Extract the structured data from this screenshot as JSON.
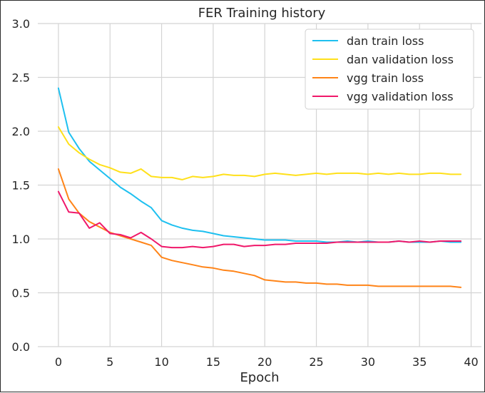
{
  "chart_data": {
    "type": "line",
    "title": "FER Training history",
    "xlabel": "Epoch",
    "ylabel": "",
    "xlim": [
      -2,
      41
    ],
    "ylim": [
      0.0,
      3.0
    ],
    "xticks": [
      0,
      5,
      10,
      15,
      20,
      25,
      30,
      35,
      40
    ],
    "yticks": [
      0.0,
      0.5,
      1.0,
      1.5,
      2.0,
      2.5,
      3.0
    ],
    "xtick_labels": [
      "0",
      "5",
      "10",
      "15",
      "20",
      "25",
      "30",
      "35",
      "40"
    ],
    "ytick_labels": [
      "0.0",
      "0.5",
      "1.0",
      "1.5",
      "2.0",
      "2.5",
      "3.0"
    ],
    "grid": true,
    "legend_position": "top-right",
    "x": [
      0,
      1,
      2,
      3,
      4,
      5,
      6,
      7,
      8,
      9,
      10,
      11,
      12,
      13,
      14,
      15,
      16,
      17,
      18,
      19,
      20,
      21,
      22,
      23,
      24,
      25,
      26,
      27,
      28,
      29,
      30,
      31,
      32,
      33,
      34,
      35,
      36,
      37,
      38,
      39
    ],
    "series": [
      {
        "name": "dan train loss",
        "color": "#1ec0f0",
        "values": [
          2.4,
          1.99,
          1.84,
          1.72,
          1.64,
          1.56,
          1.48,
          1.42,
          1.35,
          1.29,
          1.17,
          1.13,
          1.1,
          1.08,
          1.07,
          1.05,
          1.03,
          1.02,
          1.01,
          1.0,
          0.99,
          0.99,
          0.99,
          0.98,
          0.98,
          0.98,
          0.97,
          0.97,
          0.98,
          0.97,
          0.98,
          0.97,
          0.97,
          0.98,
          0.97,
          0.97,
          0.97,
          0.98,
          0.97,
          0.97
        ]
      },
      {
        "name": "dan validation loss",
        "color": "#ffe01a",
        "values": [
          2.04,
          1.88,
          1.8,
          1.74,
          1.69,
          1.66,
          1.62,
          1.61,
          1.65,
          1.58,
          1.57,
          1.57,
          1.55,
          1.58,
          1.57,
          1.58,
          1.6,
          1.59,
          1.59,
          1.58,
          1.6,
          1.61,
          1.6,
          1.59,
          1.6,
          1.61,
          1.6,
          1.61,
          1.61,
          1.61,
          1.6,
          1.61,
          1.6,
          1.61,
          1.6,
          1.6,
          1.61,
          1.61,
          1.6,
          1.6
        ]
      },
      {
        "name": "vgg train loss",
        "color": "#ff8418",
        "values": [
          1.65,
          1.37,
          1.24,
          1.16,
          1.11,
          1.06,
          1.03,
          1.0,
          0.97,
          0.94,
          0.83,
          0.8,
          0.78,
          0.76,
          0.74,
          0.73,
          0.71,
          0.7,
          0.68,
          0.66,
          0.62,
          0.61,
          0.6,
          0.6,
          0.59,
          0.59,
          0.58,
          0.58,
          0.57,
          0.57,
          0.57,
          0.56,
          0.56,
          0.56,
          0.56,
          0.56,
          0.56,
          0.56,
          0.56,
          0.55
        ]
      },
      {
        "name": "vgg validation loss",
        "color": "#f0186a",
        "values": [
          1.44,
          1.25,
          1.24,
          1.1,
          1.15,
          1.05,
          1.04,
          1.01,
          1.06,
          1.0,
          0.93,
          0.92,
          0.92,
          0.93,
          0.92,
          0.93,
          0.95,
          0.95,
          0.93,
          0.94,
          0.94,
          0.95,
          0.95,
          0.96,
          0.96,
          0.96,
          0.96,
          0.97,
          0.97,
          0.97,
          0.97,
          0.97,
          0.97,
          0.98,
          0.97,
          0.98,
          0.97,
          0.98,
          0.98,
          0.98
        ]
      }
    ]
  }
}
